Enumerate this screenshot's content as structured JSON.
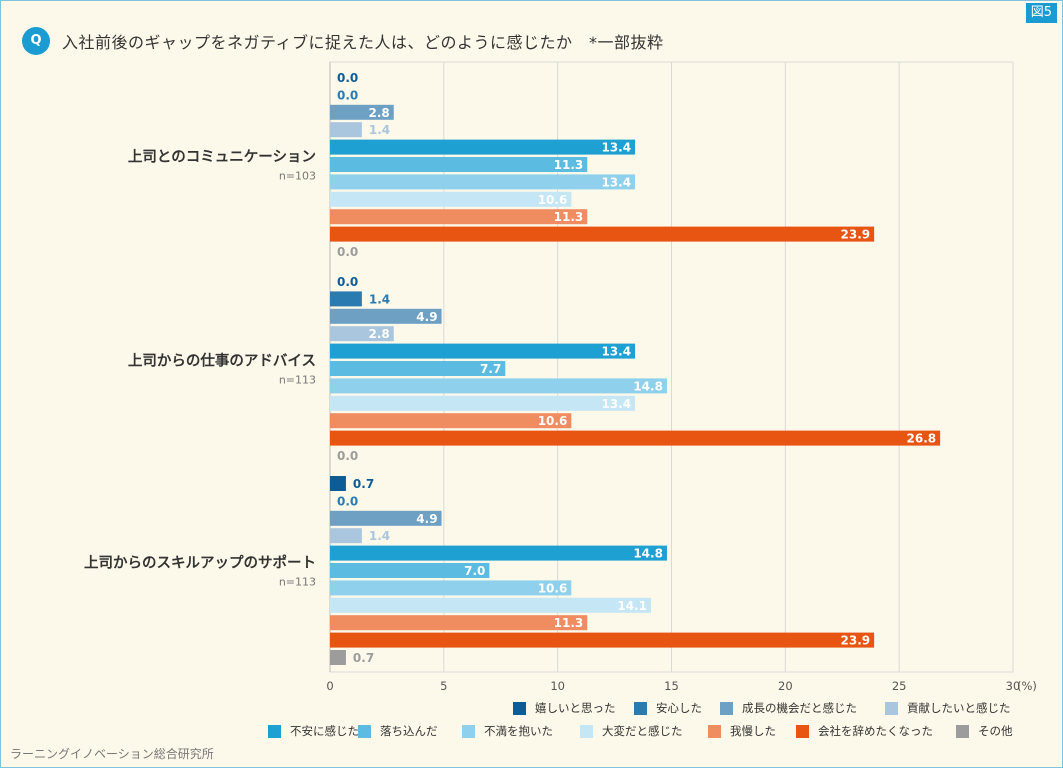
{
  "header": {
    "badge": "Q",
    "title": "入社前後のギャップをネガティブに捉えた人は、どのように感じたか　*一部抜粋",
    "figure_label": "図5"
  },
  "footer": {
    "credit": "ラーニングイノベーション総合研究所"
  },
  "chart_data": {
    "type": "bar",
    "orientation": "horizontal",
    "title": "入社前後のギャップをネガティブに捉えた人は、どのように感じたか　*一部抜粋",
    "xlabel": "(%)",
    "xlim": [
      0,
      30
    ],
    "xticks": [
      0,
      5,
      10,
      15,
      20,
      25,
      30
    ],
    "xtick_labels": [
      "0",
      "5",
      "10",
      "15",
      "20",
      "25",
      "30"
    ],
    "grid": true,
    "categories": [
      {
        "label": "上司とのコミュニケーション",
        "n": "n=103"
      },
      {
        "label": "上司からの仕事のアドバイス",
        "n": "n=113"
      },
      {
        "label": "上司からのスキルアップのサポート",
        "n": "n=113"
      }
    ],
    "series": [
      {
        "name": "嬉しいと思った",
        "color": "#0e5c96",
        "label_color": "#0e5c96",
        "values": [
          "0.0",
          "0.0",
          "0.7"
        ]
      },
      {
        "name": "安心した",
        "color": "#2a7bb0",
        "label_color": "#2a7bb0",
        "values": [
          "0.0",
          "1.4",
          "0.0"
        ]
      },
      {
        "name": "成長の機会だと感じた",
        "color": "#6ea0c4",
        "label_color": "#6ea0c4",
        "values": [
          "2.8",
          "4.9",
          "4.9"
        ]
      },
      {
        "name": "貢献したいと感じた",
        "color": "#a9c6de",
        "label_color": "#a9c6de",
        "values": [
          "1.4",
          "2.8",
          "1.4"
        ]
      },
      {
        "name": "不安に感じた",
        "color": "#1ea0d2",
        "label_color": "#1ea0d2",
        "values": [
          "13.4",
          "13.4",
          "14.8"
        ]
      },
      {
        "name": "落ち込んだ",
        "color": "#5bbbe0",
        "label_color": "#5bbbe0",
        "values": [
          "11.3",
          "7.7",
          "7.0"
        ]
      },
      {
        "name": "不満を抱いた",
        "color": "#8fd1ec",
        "label_color": "#8fd1ec",
        "values": [
          "13.4",
          "14.8",
          "10.6"
        ]
      },
      {
        "name": "大変だと感じた",
        "color": "#c4e6f5",
        "label_color": "#c4e6f5",
        "values": [
          "10.6",
          "13.4",
          "14.1"
        ]
      },
      {
        "name": "我慢した",
        "color": "#ef8c60",
        "label_color": "#ef8c60",
        "values": [
          "11.3",
          "10.6",
          "11.3"
        ]
      },
      {
        "name": "会社を辞めたくなった",
        "color": "#e85412",
        "label_color": "#e85412",
        "values": [
          "23.9",
          "26.8",
          "23.9"
        ]
      },
      {
        "name": "その他",
        "color": "#9c9c9c",
        "label_color": "#9c9c9c",
        "values": [
          "0.0",
          "0.0",
          "0.7"
        ]
      }
    ]
  }
}
